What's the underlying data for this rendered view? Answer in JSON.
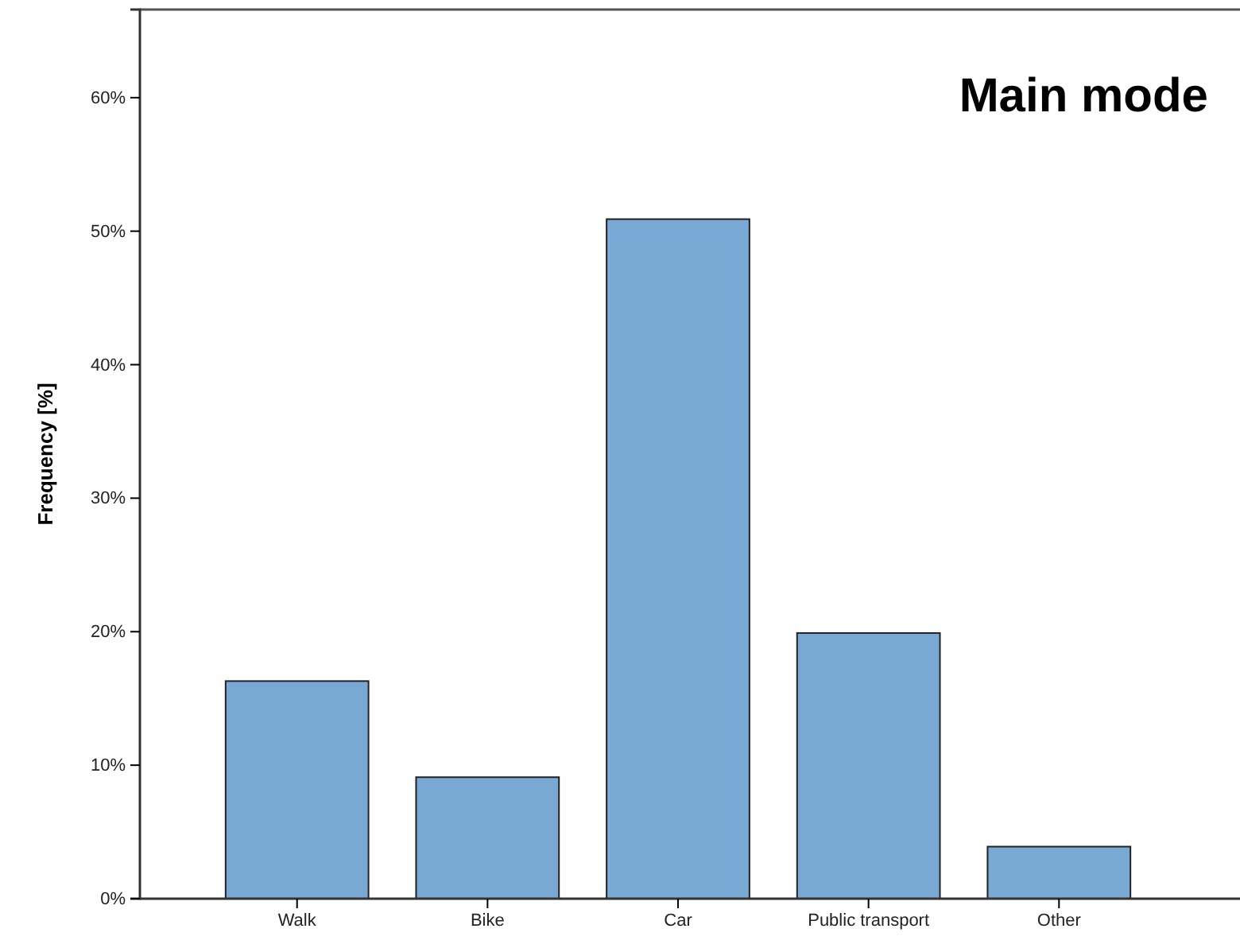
{
  "chart_data": {
    "type": "bar",
    "title": "Main mode",
    "ylabel": "Frequency [%]",
    "categories": [
      "Walk",
      "Bike",
      "Car",
      "Public transport",
      "Other"
    ],
    "values": [
      16.3,
      9.1,
      50.9,
      19.9,
      3.9
    ],
    "color": "#7aa8d5",
    "ylim": [
      0,
      66.6
    ],
    "yticks": [
      {
        "value": 0,
        "label": "0%"
      },
      {
        "value": 10,
        "label": "10%"
      },
      {
        "value": 20,
        "label": "20%"
      },
      {
        "value": 30,
        "label": "30%"
      },
      {
        "value": 40,
        "label": "40%"
      },
      {
        "value": 50,
        "label": "50%"
      },
      {
        "value": 60,
        "label": "60%"
      }
    ],
    "grid": false
  }
}
